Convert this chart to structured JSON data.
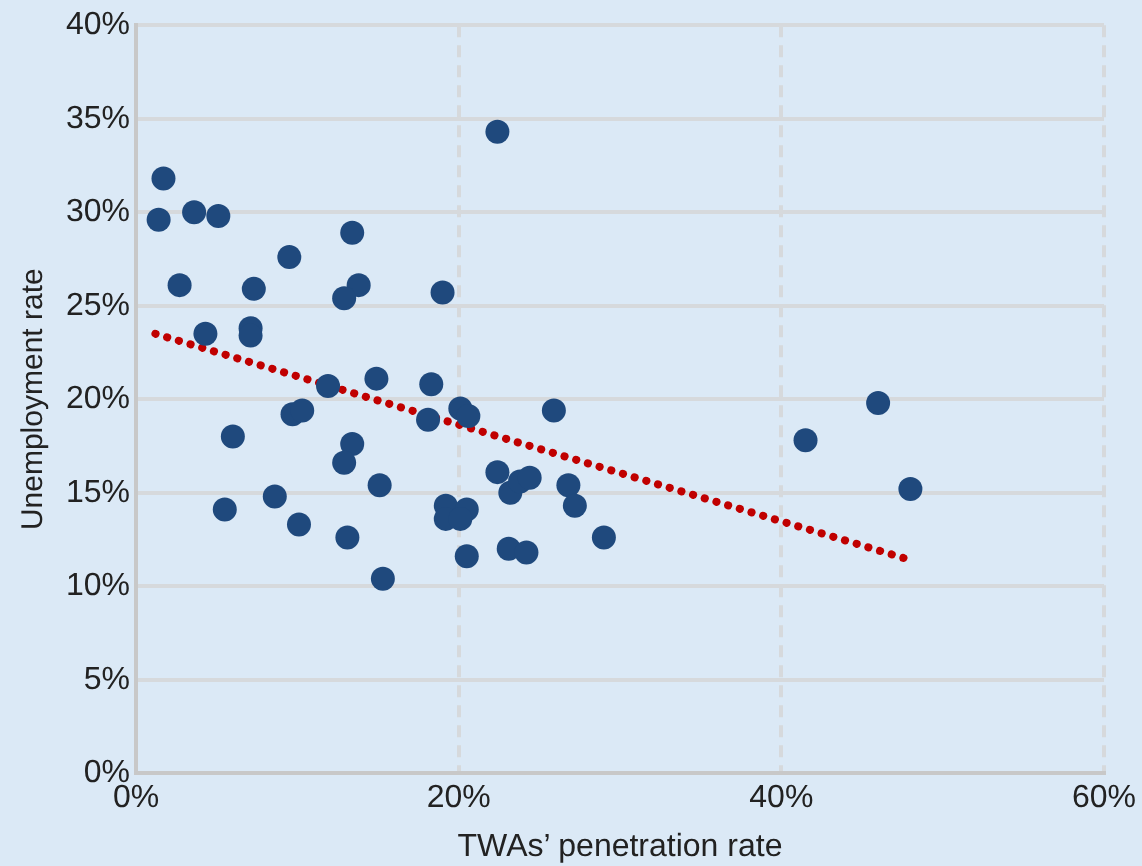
{
  "chart_data": {
    "type": "scatter",
    "xlabel": "TWAs’ penetration rate",
    "ylabel": "Unemployment rate",
    "xlim": [
      0,
      60
    ],
    "xticks": [
      {
        "value": 0,
        "label": "0%"
      },
      {
        "value": 20,
        "label": "20%"
      },
      {
        "value": 40,
        "label": "40%"
      },
      {
        "value": 60,
        "label": "60%"
      }
    ],
    "ylim": [
      0,
      40
    ],
    "yticks": [
      {
        "value": 0,
        "label": "0%"
      },
      {
        "value": 5,
        "label": "5%"
      },
      {
        "value": 10,
        "label": "10%"
      },
      {
        "value": 15,
        "label": "15%"
      },
      {
        "value": 20,
        "label": "20%"
      },
      {
        "value": 25,
        "label": "25%"
      },
      {
        "value": 30,
        "label": "30%"
      },
      {
        "value": 35,
        "label": "35%"
      },
      {
        "value": 40,
        "label": "40%"
      }
    ],
    "grid": true,
    "legend": false,
    "series": [
      {
        "color": "#1f497d",
        "marker": "circle",
        "x": [
          1.7,
          1.4,
          3.6,
          5.1,
          13.4,
          9.5,
          2.7,
          7.3,
          13.8,
          12.9,
          19.0,
          4.3,
          7.1,
          7.1,
          11.9,
          14.9,
          18.3,
          18.1,
          20.1,
          20.6,
          9.7,
          10.3,
          6.0,
          13.4,
          12.9,
          22.4,
          25.9,
          22.4,
          23.2,
          23.8,
          24.4,
          26.8,
          27.2,
          29.0,
          15.1,
          8.6,
          5.5,
          10.1,
          13.1,
          15.3,
          19.2,
          20.5,
          19.2,
          20.1,
          20.5,
          23.1,
          24.2,
          41.5,
          46.0,
          48.0
        ],
        "values": [
          31.8,
          29.6,
          30.0,
          29.8,
          28.9,
          27.6,
          26.1,
          25.9,
          26.1,
          25.4,
          25.7,
          23.5,
          23.8,
          23.4,
          20.7,
          21.1,
          20.8,
          18.9,
          19.5,
          19.1,
          19.2,
          19.4,
          18.0,
          17.6,
          16.6,
          34.3,
          19.4,
          16.1,
          15.0,
          15.6,
          15.8,
          15.4,
          14.3,
          12.6,
          15.4,
          14.8,
          14.1,
          13.3,
          12.6,
          10.4,
          14.3,
          14.1,
          13.6,
          13.6,
          11.6,
          12.0,
          11.8,
          17.8,
          19.8,
          15.2
        ]
      },
      {
        "type": "line",
        "color": "#c00000",
        "line_style": "dotted",
        "marker": "none",
        "x": [
          1.2,
          48.0
        ],
        "values": [
          23.5,
          11.4
        ]
      }
    ]
  }
}
